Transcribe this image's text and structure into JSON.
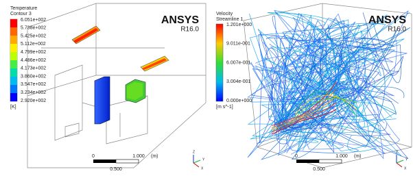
{
  "panels": [
    {
      "logo": "ANSYS",
      "version": "R16.0",
      "legend": {
        "title": "Temperature",
        "subtitle": "Contour 3",
        "labels": [
          "6.051e+002",
          "5.738e+002",
          "5.425e+002",
          "5.112e+002",
          "4.799e+002",
          "4.486e+002",
          "4.173e+002",
          "3.860e+002",
          "3.547e+002",
          "3.234e+002",
          "2.920e+002"
        ],
        "unit": "[K]"
      },
      "scale": {
        "start": "0",
        "end": "1.000",
        "unit": "(m)",
        "mid": "0.500"
      },
      "axes": [
        "Z",
        "Y",
        "X"
      ]
    },
    {
      "logo": "ANSYS",
      "version": "R16.0",
      "legend": {
        "title": "Velocity",
        "subtitle": "Streamline 1",
        "labels": [
          "1.201e+000",
          "9.011e-001",
          "6.007e-001",
          "3.004e-001",
          "0.000e+000"
        ],
        "unit": "[m s^-1]"
      },
      "scale": {
        "start": "0",
        "end": "1.000",
        "unit": "(m)",
        "mid": "0.500"
      },
      "axes": [
        "Z",
        "Y",
        "X"
      ]
    }
  ]
}
